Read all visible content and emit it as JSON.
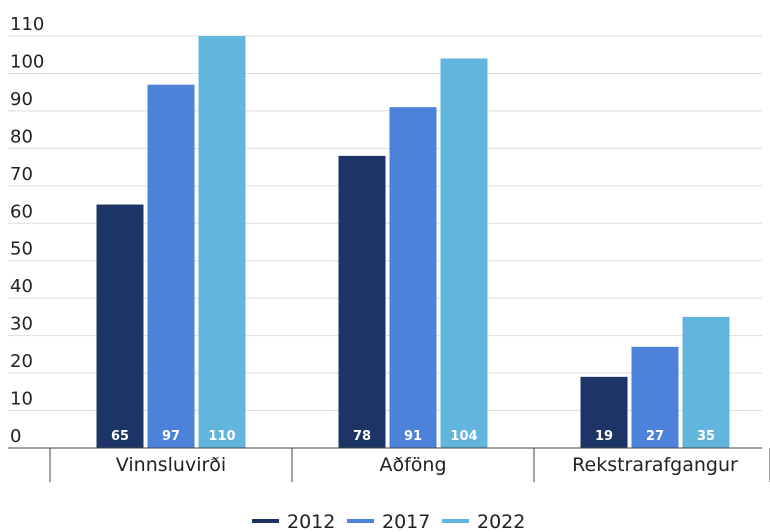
{
  "chart_data": {
    "type": "bar",
    "title": "",
    "xlabel": "",
    "ylabel": "",
    "categories": [
      "Vinnsluvirði",
      "Aðföng",
      "Rekstrarafgangur"
    ],
    "series": [
      {
        "name": "2012",
        "values": [
          65,
          78,
          19
        ],
        "color": "#1c3466"
      },
      {
        "name": "2017",
        "values": [
          97,
          91,
          27
        ],
        "color": "#4d82db"
      },
      {
        "name": "2022",
        "values": [
          110,
          104,
          35
        ],
        "color": "#62b5dc"
      }
    ],
    "ylim": [
      0,
      110
    ],
    "yticks": [
      0,
      10,
      20,
      30,
      40,
      50,
      60,
      70,
      80,
      90,
      100,
      110
    ],
    "grid": true,
    "legend_position": "bottom-center",
    "data_labels": true
  }
}
